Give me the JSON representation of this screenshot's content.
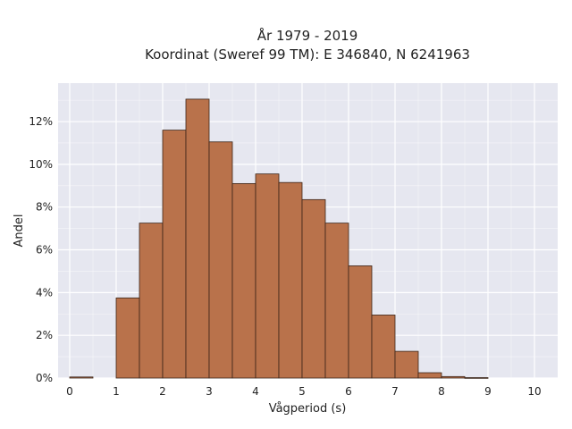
{
  "chart_data": {
    "type": "bar",
    "title_lines": [
      "År 1979 - 2019",
      "Koordinat (Sweref 99 TM): E 346840, N 6241963"
    ],
    "xlabel": "Vågperiod (s)",
    "ylabel": "Andel",
    "xlim": [
      -0.25,
      10.5
    ],
    "ylim": [
      0,
      13.8
    ],
    "x_ticks": [
      0,
      1,
      2,
      3,
      4,
      5,
      6,
      7,
      8,
      9,
      10
    ],
    "y_ticks": [
      0,
      2,
      4,
      6,
      8,
      10,
      12
    ],
    "y_tick_labels": [
      "0%",
      "2%",
      "4%",
      "6%",
      "8%",
      "10%",
      "12%"
    ],
    "bin_width": 0.5,
    "bins": [
      {
        "start": 0.0,
        "value": 0.05
      },
      {
        "start": 0.5,
        "value": 0.0
      },
      {
        "start": 1.0,
        "value": 3.75
      },
      {
        "start": 1.5,
        "value": 7.25
      },
      {
        "start": 2.0,
        "value": 11.6
      },
      {
        "start": 2.5,
        "value": 13.05
      },
      {
        "start": 3.0,
        "value": 11.05
      },
      {
        "start": 3.5,
        "value": 9.1
      },
      {
        "start": 4.0,
        "value": 9.55
      },
      {
        "start": 4.5,
        "value": 9.15
      },
      {
        "start": 5.0,
        "value": 8.35
      },
      {
        "start": 5.5,
        "value": 7.25
      },
      {
        "start": 6.0,
        "value": 5.25
      },
      {
        "start": 6.5,
        "value": 2.95
      },
      {
        "start": 7.0,
        "value": 1.25
      },
      {
        "start": 7.5,
        "value": 0.25
      },
      {
        "start": 8.0,
        "value": 0.07
      },
      {
        "start": 8.5,
        "value": 0.02
      },
      {
        "start": 9.0,
        "value": 0.0
      },
      {
        "start": 9.5,
        "value": 0.0
      }
    ],
    "grid": true,
    "colors": {
      "bar_fill": "#b9724b",
      "bar_edge": "#3a2418",
      "plot_background": "#e6e7f0",
      "grid": "#ffffff"
    }
  }
}
